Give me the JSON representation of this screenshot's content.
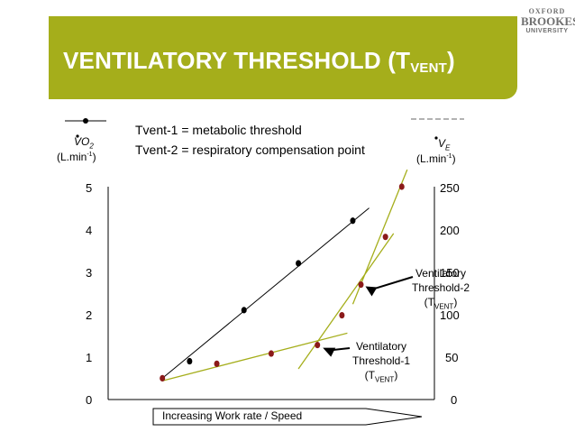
{
  "header": {
    "title_main": "VENTILATORY THRESHOLD (T",
    "title_sub": "VENT",
    "title_close": ")",
    "logo_line1": "OXFORD",
    "logo_line2": "BROOKES",
    "logo_line3": "UNIVERSITY",
    "banner_color": "#a5ae1b"
  },
  "chart_data": {
    "type": "line",
    "legend": {
      "line1": "Tvent-1 = metabolic threshold",
      "line2": "Tvent-2 = respiratory compensation point"
    },
    "left_axis": {
      "symbol": "VO",
      "symbol_sub": "2",
      "unit_a": "(L.min",
      "unit_sup": "-1",
      "unit_b": ")",
      "ticks": [
        "0",
        "1",
        "2",
        "3",
        "4",
        "5"
      ],
      "ylim": [
        0,
        5
      ]
    },
    "right_axis": {
      "symbol": "V",
      "symbol_sub": "E",
      "unit_a": "(L.min",
      "unit_sup": "-1",
      "unit_b": ")",
      "ticks": [
        "0",
        "50",
        "100",
        "150",
        "200",
        "250"
      ],
      "ylim": [
        0,
        250
      ]
    },
    "xlabel": "Increasing Work rate / Speed",
    "series": [
      {
        "name": "VO2",
        "axis": "left",
        "color": "#000000",
        "points": [
          [
            1,
            0.9
          ],
          [
            2,
            2.1
          ],
          [
            3,
            3.2
          ],
          [
            4,
            4.2
          ]
        ],
        "trend": [
          [
            0.5,
            0.5
          ],
          [
            4.3,
            4.5
          ]
        ]
      },
      {
        "name": "VE",
        "axis": "right",
        "color": "#8b1a1a",
        "points": [
          [
            0.5,
            25
          ],
          [
            1.5,
            42
          ],
          [
            2.5,
            54
          ],
          [
            3.35,
            64
          ],
          [
            3.8,
            99
          ],
          [
            4.15,
            135
          ],
          [
            4.6,
            191
          ],
          [
            4.9,
            250
          ]
        ],
        "trend_segments": [
          [
            [
              0.5,
              22
            ],
            [
              3.9,
              78
            ]
          ],
          [
            [
              3.0,
              36
            ],
            [
              4.75,
              195
            ]
          ],
          [
            [
              4.0,
              112
            ],
            [
              5.0,
              270
            ]
          ]
        ]
      }
    ],
    "annotations": [
      {
        "id": "t1",
        "line1": "Ventilatory",
        "line2": "Threshold-1",
        "line3a": "(T",
        "line3sub": "VENT",
        "line3b": ")",
        "at": [
          3.35,
          64
        ]
      },
      {
        "id": "t2",
        "line1": "Ventilatory",
        "line2": "Threshold-2",
        "line3a": "(T",
        "line3sub": "VENT",
        "line3b": ")",
        "at": [
          4.15,
          135
        ]
      }
    ]
  }
}
